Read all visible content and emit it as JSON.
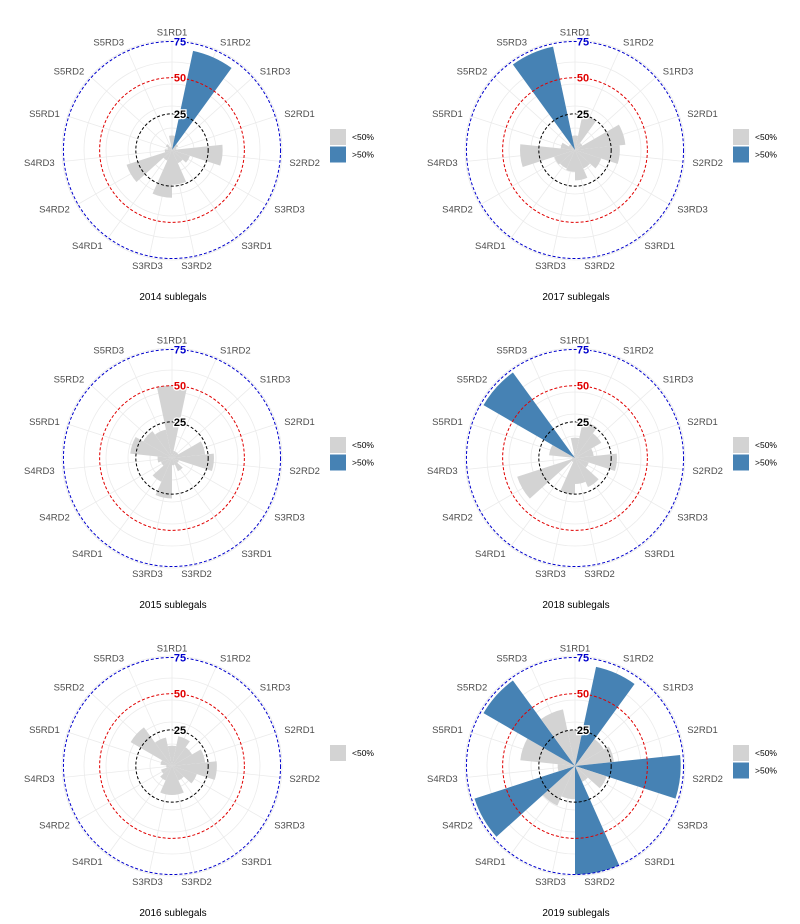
{
  "colors": {
    "below": "#d3d3d3",
    "above": "#4682b4",
    "ref25": "#000000",
    "ref50": "#e00000",
    "ref75": "#0000cc",
    "grid": "#ebebeb"
  },
  "chart_data": [
    {
      "type": "bar",
      "coord": "polar",
      "caption": "2014 sublegals",
      "categories": [
        "S1RD1",
        "S1RD2",
        "S1RD3",
        "S2RD1",
        "S2RD2",
        "S3RD3",
        "S3RD1",
        "S3RD2",
        "S3RD3",
        "S4RD1",
        "S4RD2",
        "S4RD3",
        "S5RD1",
        "S5RD2",
        "S5RD3"
      ],
      "values": [
        10,
        70,
        5,
        3,
        35,
        13,
        10,
        24,
        33,
        8,
        33,
        5,
        3,
        5,
        2
      ],
      "reference_lines": [
        25,
        50,
        75
      ],
      "legend": [
        "<50%",
        ">50%"
      ]
    },
    {
      "type": "bar",
      "coord": "polar",
      "caption": "2017 sublegals",
      "categories": [
        "S1RD1",
        "S1RD2",
        "S1RD3",
        "S2RD1",
        "S2RD2",
        "S3RD3",
        "S3RD1",
        "S3RD2",
        "S3RD3",
        "S4RD1",
        "S4RD2",
        "S4RD3",
        "S5RD1",
        "S5RD2",
        "S5RD3"
      ],
      "values": [
        10,
        25,
        6,
        35,
        31,
        19,
        14,
        21,
        15,
        14,
        15,
        38,
        10,
        5,
        73
      ],
      "reference_lines": [
        25,
        50,
        75
      ],
      "legend": [
        "<50%",
        ">50%"
      ]
    },
    {
      "type": "bar",
      "coord": "polar",
      "caption": "2015 sublegals",
      "categories": [
        "S1RD1",
        "S1RD2",
        "S1RD3",
        "S2RD1",
        "S2RD2",
        "S3RD3",
        "S3RD1",
        "S3RD2",
        "S3RD3",
        "S4RD1",
        "S4RD2",
        "S4RD3",
        "S5RD1",
        "S5RD2",
        "S5RD3"
      ],
      "values": [
        50,
        5,
        5,
        23,
        29,
        5,
        10,
        5,
        28,
        18,
        8,
        10,
        29,
        23,
        20
      ],
      "reference_lines": [
        25,
        50,
        75
      ],
      "legend": [
        "<50%",
        ">50%"
      ]
    },
    {
      "type": "bar",
      "coord": "polar",
      "caption": "2018 sublegals",
      "categories": [
        "S1RD1",
        "S1RD2",
        "S1RD3",
        "S2RD1",
        "S2RD2",
        "S3RD3",
        "S3RD1",
        "S3RD2",
        "S3RD3",
        "S4RD1",
        "S4RD2",
        "S4RD3",
        "S5RD1",
        "S5RD2",
        "S5RD3"
      ],
      "values": [
        14,
        26,
        21,
        13,
        29,
        10,
        22,
        18,
        25,
        3,
        42,
        2,
        18,
        73,
        2
      ],
      "reference_lines": [
        25,
        50,
        75
      ],
      "legend": [
        "<50%",
        ">50%"
      ]
    },
    {
      "type": "bar",
      "coord": "polar",
      "caption": "2016 sublegals",
      "categories": [
        "S1RD1",
        "S1RD2",
        "S1RD3",
        "S2RD1",
        "S2RD2",
        "S3RD3",
        "S3RD1",
        "S3RD2",
        "S3RD3",
        "S4RD1",
        "S4RD2",
        "S4RD3",
        "S5RD1",
        "S5RD2",
        "S5RD3"
      ],
      "values": [
        14,
        21,
        16,
        23,
        31,
        18,
        11,
        20,
        20,
        11,
        8,
        4,
        8,
        33,
        20
      ],
      "reference_lines": [
        25,
        50,
        75
      ],
      "legend": [
        "<50%"
      ]
    },
    {
      "type": "bar",
      "coord": "polar",
      "caption": "2019 sublegals",
      "categories": [
        "S1RD1",
        "S1RD2",
        "S1RD3",
        "S2RD1",
        "S2RD2",
        "S3RD3",
        "S3RD1",
        "S3RD2",
        "S3RD3",
        "S4RD1",
        "S4RD2",
        "S4RD3",
        "S5RD1",
        "S5RD2",
        "S5RD3"
      ],
      "values": [
        25,
        70,
        23,
        27,
        73,
        23,
        12,
        75,
        23,
        30,
        73,
        12,
        38,
        73,
        40
      ],
      "reference_lines": [
        25,
        50,
        75
      ],
      "legend": [
        "<50%",
        ">50%"
      ]
    }
  ]
}
